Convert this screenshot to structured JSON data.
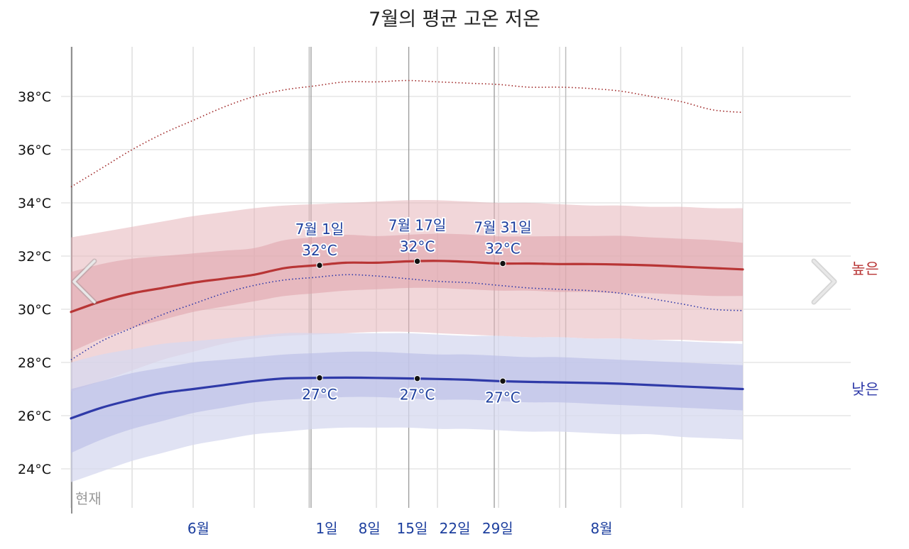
{
  "chart_data": {
    "type": "area",
    "title": "7월의 평균 고온 저온",
    "xlabel": "",
    "ylabel": "",
    "unit": "°C",
    "ylim": [
      22.5,
      39.3
    ],
    "yticks": [
      24,
      26,
      28,
      30,
      32,
      34,
      36,
      38
    ],
    "ytick_labels": [
      "24°C",
      "26°C",
      "28°C",
      "30°C",
      "32°C",
      "34°C",
      "36°C",
      "38°C"
    ],
    "x_domain": [
      -50,
      80
    ],
    "x_ticks": [
      {
        "day": -21,
        "label": "6월"
      },
      {
        "day": 0,
        "label": "1일"
      },
      {
        "day": 7,
        "label": "8일"
      },
      {
        "day": 14,
        "label": "15일"
      },
      {
        "day": 21,
        "label": "22일"
      },
      {
        "day": 28,
        "label": "29일"
      },
      {
        "day": 45,
        "label": "8월"
      }
    ],
    "gridline_days": [
      -40,
      -30,
      -20,
      -10,
      10,
      20,
      30,
      40,
      50,
      60,
      70
    ],
    "month_boundaries": [
      -1,
      41
    ],
    "now_day": -40,
    "now_label": "현재",
    "x": [
      -40,
      -35,
      -30,
      -25,
      -20,
      -15,
      -10,
      -5,
      0,
      5,
      10,
      15,
      20,
      25,
      30,
      35,
      40,
      45,
      50,
      55,
      60,
      65,
      70
    ],
    "series": [
      {
        "name": "높은",
        "color": "#b83535",
        "values": [
          29.9,
          30.3,
          30.6,
          30.8,
          31.0,
          31.15,
          31.3,
          31.55,
          31.65,
          31.75,
          31.75,
          31.8,
          31.82,
          31.78,
          31.72,
          31.72,
          31.7,
          31.7,
          31.68,
          31.65,
          31.6,
          31.55,
          31.5
        ]
      },
      {
        "name": "낮은",
        "color": "#2f3aa8",
        "values": [
          25.9,
          26.3,
          26.6,
          26.85,
          27.0,
          27.15,
          27.3,
          27.4,
          27.42,
          27.43,
          27.42,
          27.4,
          27.38,
          27.35,
          27.3,
          27.27,
          27.25,
          27.23,
          27.2,
          27.15,
          27.1,
          27.05,
          27.0
        ]
      }
    ],
    "bands": [
      {
        "name": "high_p10_p90",
        "color": "#e6b5ba",
        "lower": [
          26.9,
          27.3,
          27.7,
          28.1,
          28.4,
          28.7,
          28.9,
          29.0,
          29.05,
          29.1,
          29.15,
          29.15,
          29.1,
          29.05,
          29.0,
          28.95,
          28.95,
          28.9,
          28.9,
          28.85,
          28.85,
          28.8,
          28.8
        ],
        "upper": [
          32.7,
          32.9,
          33.1,
          33.3,
          33.5,
          33.65,
          33.8,
          33.9,
          33.95,
          34.0,
          34.05,
          34.1,
          34.1,
          34.05,
          34.0,
          34.0,
          33.95,
          33.9,
          33.9,
          33.85,
          33.85,
          33.8,
          33.8
        ]
      },
      {
        "name": "high_p25_p75",
        "color": "#dfa3a9",
        "lower": [
          28.4,
          28.9,
          29.3,
          29.6,
          29.9,
          30.1,
          30.3,
          30.5,
          30.6,
          30.7,
          30.75,
          30.8,
          30.8,
          30.75,
          30.7,
          30.7,
          30.65,
          30.65,
          30.6,
          30.6,
          30.55,
          30.5,
          30.5
        ]
      },
      {
        "name": "low_p10_p90",
        "color": "#d6d8ef",
        "lower": [
          23.5,
          23.9,
          24.3,
          24.6,
          24.9,
          25.1,
          25.3,
          25.4,
          25.5,
          25.55,
          25.55,
          25.55,
          25.5,
          25.5,
          25.45,
          25.4,
          25.4,
          25.35,
          25.3,
          25.3,
          25.2,
          25.15,
          25.1
        ],
        "upper": [
          28.0,
          28.3,
          28.5,
          28.7,
          28.8,
          28.9,
          29.0,
          29.1,
          29.1,
          29.1,
          29.1,
          29.1,
          29.05,
          29.0,
          29.0,
          28.95,
          28.95,
          28.9,
          28.9,
          28.85,
          28.8,
          28.75,
          28.7
        ]
      },
      {
        "name": "low_p25_p75",
        "color": "#bcbfe6",
        "lower": [
          24.6,
          25.1,
          25.5,
          25.8,
          26.1,
          26.3,
          26.5,
          26.6,
          26.65,
          26.7,
          26.7,
          26.65,
          26.6,
          26.6,
          26.55,
          26.5,
          26.5,
          26.45,
          26.4,
          26.35,
          26.3,
          26.25,
          26.2
        ],
        "upper": [
          27.0,
          27.3,
          27.6,
          27.8,
          28.0,
          28.1,
          28.2,
          28.3,
          28.35,
          28.4,
          28.4,
          28.35,
          28.3,
          28.3,
          28.25,
          28.2,
          28.2,
          28.15,
          28.1,
          28.05,
          28.0,
          27.95,
          27.9
        ]
      }
    ],
    "dotted_lines": [
      {
        "name": "high_extreme",
        "color": "#9e2424",
        "values": [
          34.6,
          35.3,
          36.0,
          36.6,
          37.1,
          37.6,
          38.0,
          38.25,
          38.4,
          38.55,
          38.55,
          38.6,
          38.55,
          38.5,
          38.45,
          38.35,
          38.35,
          38.3,
          38.2,
          38.0,
          37.8,
          37.5,
          37.4
        ]
      },
      {
        "name": "low_extreme",
        "color": "#2b35a8",
        "values": [
          28.1,
          28.8,
          29.3,
          29.8,
          30.2,
          30.6,
          30.9,
          31.1,
          31.2,
          31.3,
          31.25,
          31.15,
          31.05,
          31.0,
          30.9,
          30.8,
          30.75,
          30.7,
          30.6,
          30.4,
          30.2,
          30.0,
          29.95
        ]
      }
    ],
    "annotations": [
      {
        "day": 0,
        "date_label": "7월 1일",
        "high": 32,
        "high_label": "32°C",
        "low": 27,
        "low_label": "27°C"
      },
      {
        "day": 16,
        "date_label": "7월 17일",
        "high": 32,
        "high_label": "32°C",
        "low": 27,
        "low_label": "27°C"
      },
      {
        "day": 30,
        "date_label": "7월 31일",
        "high": 32,
        "high_label": "32°C",
        "low": 27,
        "low_label": "27°C"
      }
    ],
    "legend": {
      "high_label": "높은",
      "low_label": "낮은",
      "position": "right"
    }
  },
  "nav": {
    "prev_icon": "chevron-left-icon",
    "next_icon": "chevron-right-icon"
  },
  "colors": {
    "grid": "#e6e6e6",
    "month_line": "#bdbdbd",
    "marker": "#111111",
    "nav": "#c8c8c8"
  }
}
